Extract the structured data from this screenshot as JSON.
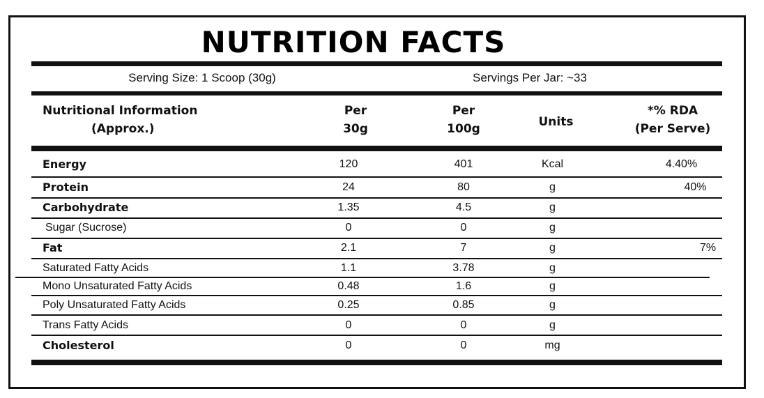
{
  "title": "NUTRITION FACTS",
  "serving": {
    "size": "Serving Size: 1 Scoop (30g)",
    "per_jar": "Servings Per Jar: ~33"
  },
  "header": {
    "col1": [
      "Nutritional Information",
      "(Approx.)"
    ],
    "col2": [
      "Per",
      "30g"
    ],
    "col3": [
      "Per",
      "100g"
    ],
    "col4": [
      "Units"
    ],
    "col5": [
      "*% RDA",
      "(Per Serve)"
    ]
  },
  "rows": [
    {
      "name": "Energy",
      "per30": "120",
      "per100": "401",
      "unit": "Kcal",
      "rda": "4.40%",
      "bold": true
    },
    {
      "name": "Protein",
      "per30": "24",
      "per100": "80",
      "unit": "g",
      "rda": "40%",
      "bold": true
    },
    {
      "name": "Carbohydrate",
      "per30": "1.35",
      "per100": "4.5",
      "unit": "g",
      "rda": "",
      "bold": true
    },
    {
      "name": "Sugar (Sucrose)",
      "per30": "0",
      "per100": "0",
      "unit": "g",
      "rda": "",
      "bold": false
    },
    {
      "name": "Fat",
      "per30": "2.1",
      "per100": "7",
      "unit": "g",
      "rda": "7%",
      "bold": true
    },
    {
      "name": "Saturated Fatty Acids",
      "per30": "1.1",
      "per100": "3.78",
      "unit": "g",
      "rda": "",
      "bold": false
    },
    {
      "name": "Mono Unsaturated Fatty Acids",
      "per30": "0.48",
      "per100": "1.6",
      "unit": "g",
      "rda": "",
      "bold": false
    },
    {
      "name": "Poly Unsaturated Fatty Acids",
      "per30": "0.25",
      "per100": "0.85",
      "unit": "g",
      "rda": "",
      "bold": false
    },
    {
      "name": "Trans Fatty Acids",
      "per30": "0",
      "per100": "0",
      "unit": "g",
      "rda": "",
      "bold": false
    },
    {
      "name": "Cholesterol",
      "per30": "0",
      "per100": "0",
      "unit": "mg",
      "rda": "",
      "bold": true
    }
  ]
}
